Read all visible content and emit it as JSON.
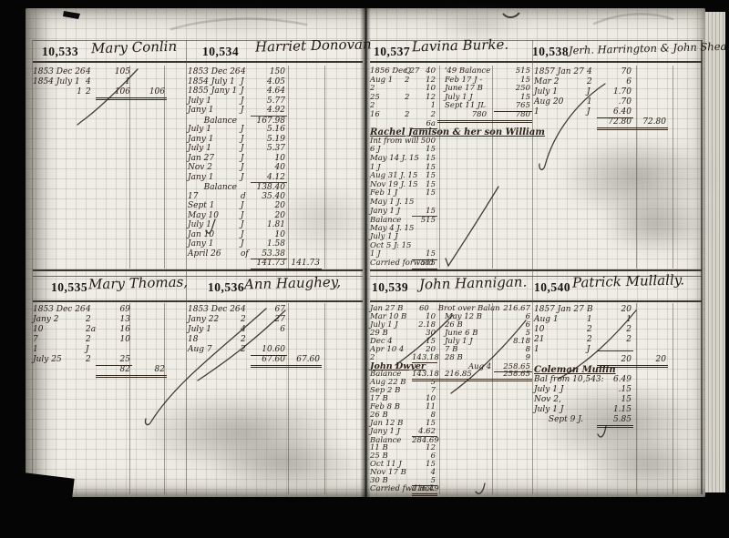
{
  "document": {
    "kind": "handwritten bank ledger scan, two-page spread",
    "colors": {
      "background": "#050505",
      "paper": "#efede5",
      "ink": "#2b2118",
      "grid": "#9aa398",
      "stain": "#7e7d74"
    },
    "accounts": [
      {
        "number": "10,533",
        "name": "Mary Conlin",
        "rows": [
          {
            "d": "1853 Dec 26",
            "r": "4",
            "a": "105"
          },
          {
            "d": "1854 July 1",
            "r": "4",
            "a": "1"
          },
          {
            "d": "1",
            "r": "2",
            "a": "106",
            "a2": "106",
            "cls": "total"
          }
        ]
      },
      {
        "number": "10,534",
        "name": "Harriet Donovan",
        "rows": [
          {
            "d": "1853 Dec 26",
            "r": "4",
            "a": "150"
          },
          {
            "d": "1854 July 1",
            "r": "J",
            "a": "4.05"
          },
          {
            "d": "1855 Jany 1",
            "r": "J",
            "a": "4.64"
          },
          {
            "d": "July 1",
            "r": "J",
            "a": "5.77"
          },
          {
            "d": "Jany 1",
            "r": "J",
            "a": "4.92"
          },
          {
            "d": "Balance",
            "a": "167.98",
            "cls": "balance"
          },
          {
            "d": "July 1",
            "r": "J",
            "a": "5.16"
          },
          {
            "d": "Jany 1",
            "r": "J",
            "a": "5.19"
          },
          {
            "d": "July 1",
            "r": "J",
            "a": "5.37"
          },
          {
            "d": "Jan 27",
            "r": "J",
            "a": "10"
          },
          {
            "d": "Nov 2",
            "r": "J",
            "a": "40"
          },
          {
            "d": "Jany 1",
            "r": "J",
            "a": "4.12"
          },
          {
            "d": "Balance",
            "a": "138.40",
            "cls": "balance"
          },
          {
            "d": "17",
            "r": "d",
            "a": "35.40"
          },
          {
            "d": "Sept 1",
            "r": "J",
            "a": "20"
          },
          {
            "d": "May 10",
            "r": "J",
            "a": "20"
          },
          {
            "d": "July 1",
            "r": "J",
            "a": "1.81"
          },
          {
            "d": "Jan 10",
            "r": "J",
            "a": "10"
          },
          {
            "d": "Jany 1",
            "r": "J",
            "a": "1.58"
          },
          {
            "d": "April 26",
            "r": "of",
            "a": "53.38",
            "cls": "under"
          },
          {
            "d": "",
            "r": "",
            "a": "141.73",
            "a2": "141.73",
            "cls": "total"
          }
        ]
      },
      {
        "number": "10,535",
        "name": "Mary Thomas,",
        "rows": [
          {
            "d": "1853 Dec 26",
            "r": "4",
            "a": "69"
          },
          {
            "d": "Jany 2",
            "r": "2",
            "a": "13"
          },
          {
            "d": "10",
            "r": "2a",
            "a": "16"
          },
          {
            "d": "7",
            "r": "2",
            "a": "10"
          },
          {
            "d": "1",
            "r": "J",
            "a": ""
          },
          {
            "d": "July 25",
            "r": "2",
            "a": "25",
            "cls": "under"
          },
          {
            "d": "",
            "r": "",
            "a": "82",
            "a2": "82",
            "cls": "total"
          }
        ]
      },
      {
        "number": "10,536",
        "name": "Ann Haughey,",
        "rows": [
          {
            "d": "1853 Dec 26",
            "r": "4",
            "a": "67"
          },
          {
            "d": "Jany 22",
            "r": "2",
            "a": "27"
          },
          {
            "d": "July 1",
            "r": "4",
            "a": "6"
          },
          {
            "d": "18",
            "r": "2",
            "a": ""
          },
          {
            "d": "Aug 7",
            "r": "2",
            "a": "10.60",
            "cls": "under"
          },
          {
            "d": "",
            "r": "",
            "a": "67.60",
            "a2": "67.60",
            "cls": "total"
          }
        ]
      },
      {
        "number": "10,537",
        "name": "Lavina Burke.",
        "rows": [
          {
            "d": "1856 Dec 27",
            "r": "Q",
            "a": "40",
            "d2": "'49 Balance",
            "a2": "515"
          },
          {
            "d": "Aug 1",
            "r": "2",
            "a": "12",
            "d2": "Feb 17 J -",
            "a2": "15"
          },
          {
            "d": "2",
            "r": "",
            "a": "10",
            "d2": "June 17 B",
            "a2": "250"
          },
          {
            "d": "25",
            "r": "2",
            "a": "12",
            "d2": "July 1 J",
            "a2": "15"
          },
          {
            "d": "2",
            "r": "",
            "a": "1",
            "d2": "Sept 11 JL",
            "a2": "765",
            "cls": "under2"
          },
          {
            "d": "16",
            "r": "2",
            "a": "2",
            "d2": "780",
            "a2": "780",
            "cls": "total2"
          },
          {
            "d": "",
            "r": "",
            "a": "6a",
            "cls": "under"
          },
          {
            "d": "Rachel Jamison & her son William",
            "cls": "name-note"
          },
          {
            "d": "Int from will",
            "a": "500"
          },
          {
            "d": "6 J",
            "a": "15"
          },
          {
            "d": "May 14 J. 15",
            "a": "15"
          },
          {
            "d": "1 J",
            "a": "15"
          },
          {
            "d": "Aug 31 J. 15",
            "a": "15"
          },
          {
            "d": "Nov 19 J. 15",
            "a": "15"
          },
          {
            "d": "Feb 1 J",
            "a": "15"
          },
          {
            "d": "May 1 J. 15",
            "a": ""
          },
          {
            "d": "Jany 1 J",
            "a": "15",
            "cls": "under"
          },
          {
            "d": "Balance",
            "a": "515",
            "cls": "balance"
          },
          {
            "d": "May 4 J. 15",
            "a": ""
          },
          {
            "d": "July 1 J",
            "a": ""
          },
          {
            "d": "Oct 5 J: 15",
            "a": ""
          },
          {
            "d": "1 J",
            "a": "15",
            "cls": "under"
          },
          {
            "d": "Carried forward",
            "a": "515",
            "cls": "total"
          }
        ]
      },
      {
        "number": "10,538",
        "name": "Jerh. Harrington & John Shea.",
        "rows": [
          {
            "d": "1857 Jan 27",
            "r": "4",
            "a": "70"
          },
          {
            "d": "Mar 2",
            "r": "2",
            "a": "6"
          },
          {
            "d": "July 1",
            "r": "J",
            "a": "1.70"
          },
          {
            "d": "Aug 20",
            "r": "1",
            "a": ".70"
          },
          {
            "d": "1",
            "r": "J",
            "a": "6.40",
            "cls": "under"
          },
          {
            "d": "",
            "r": "",
            "a": "72.80",
            "a2": "72.80",
            "cls": "total"
          }
        ]
      },
      {
        "number": "10,539",
        "name": "John Hannigan.",
        "rows": [
          {
            "d": "Jan 27 B",
            "a": "60",
            "d2": "Brot over Balan",
            "a2": "216.67"
          },
          {
            "d": "Mar 10 B",
            "a": "10",
            "d2": "May 12 B",
            "a2": "6"
          },
          {
            "d": "July 1 J",
            "a": "2.18",
            "d2": "26 B",
            "a2": "6"
          },
          {
            "d": "29 B",
            "a": "30",
            "d2": "June 6 B",
            "a2": "5"
          },
          {
            "d": "Dec 4",
            "a": "15",
            "d2": "July 1 J",
            "a2": "8.18"
          },
          {
            "d": "Apr 10 4",
            "a": "20",
            "d2": "7 B",
            "a2": "8"
          },
          {
            "d": "2",
            "a": "143.18",
            "d2": "28 B",
            "a2": "9",
            "cls": "under"
          },
          {
            "d": "John Dwyer",
            "d2": "Aug 4",
            "a2": "258.65",
            "cls": "dwyer under2"
          },
          {
            "d": "Balance",
            "a": "143.18",
            "d2": "216.85",
            "a2": "258.65",
            "cls": "total"
          },
          {
            "d": "Aug 22 B",
            "a": "5"
          },
          {
            "d": "Sep 2 B",
            "a": "7"
          },
          {
            "d": "17 B",
            "a": "10"
          },
          {
            "d": "Feb 8 B",
            "a": "11"
          },
          {
            "d": "26 B",
            "a": "8"
          },
          {
            "d": "Jan 12 B",
            "a": "15"
          },
          {
            "d": "Jany 1 J",
            "a": "4.62",
            "cls": "under"
          },
          {
            "d": "Balance",
            "a": "284.69",
            "cls": "balance"
          },
          {
            "d": "11 B",
            "a": "12"
          },
          {
            "d": "25 B",
            "a": "6"
          },
          {
            "d": "Oct 11 J",
            "a": "15"
          },
          {
            "d": "Nov 17 B",
            "a": "4"
          },
          {
            "d": "30 B",
            "a": "5",
            "cls": "under"
          },
          {
            "d": "Carried fwd Bal.",
            "a": "216.49",
            "cls": "total"
          }
        ]
      },
      {
        "number": "10,540",
        "name": "Patrick Mullally.",
        "rows": [
          {
            "d": "1857 Jan 27",
            "r": "B",
            "a": "20"
          },
          {
            "d": "Aug 1",
            "r": "1",
            "a": "1"
          },
          {
            "d": "10",
            "r": "2",
            "a": "2"
          },
          {
            "d": "21",
            "r": "2",
            "a": "2"
          },
          {
            "d": "1",
            "r": "J",
            "a": "",
            "cls": "under"
          },
          {
            "d": "",
            "r": "",
            "a": "20",
            "a2": "20",
            "cls": "total"
          },
          {
            "d": "Coleman Mullin",
            "cls": "name-note"
          },
          {
            "d": "Bal from 10,543:",
            "a": "6.49"
          },
          {
            "d": "July 1 J",
            "a": ".15"
          },
          {
            "d": "Nov 2,",
            "a": "15"
          },
          {
            "d": "July 1 J",
            "a": "1.15"
          },
          {
            "d": "Sept 9 J.",
            "a": "5.85",
            "cls": "total"
          }
        ]
      }
    ]
  }
}
